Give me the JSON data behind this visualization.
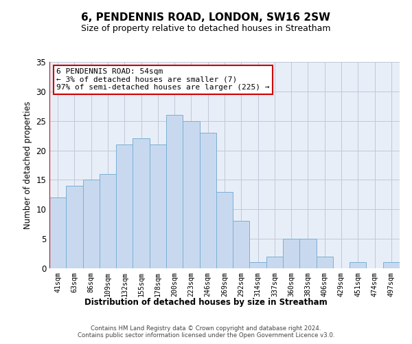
{
  "title": "6, PENDENNIS ROAD, LONDON, SW16 2SW",
  "subtitle": "Size of property relative to detached houses in Streatham",
  "xlabel": "Distribution of detached houses by size in Streatham",
  "ylabel": "Number of detached properties",
  "footer_line1": "Contains HM Land Registry data © Crown copyright and database right 2024.",
  "footer_line2": "Contains public sector information licensed under the Open Government Licence v3.0.",
  "bin_labels": [
    "41sqm",
    "63sqm",
    "86sqm",
    "109sqm",
    "132sqm",
    "155sqm",
    "178sqm",
    "200sqm",
    "223sqm",
    "246sqm",
    "269sqm",
    "292sqm",
    "314sqm",
    "337sqm",
    "360sqm",
    "383sqm",
    "406sqm",
    "429sqm",
    "451sqm",
    "474sqm",
    "497sqm"
  ],
  "bar_values": [
    12,
    14,
    15,
    16,
    21,
    22,
    21,
    26,
    25,
    23,
    13,
    8,
    1,
    2,
    5,
    5,
    2,
    0,
    1,
    0,
    1
  ],
  "bar_color": "#c8d9ef",
  "bar_edge_color": "#7aafd4",
  "annotation_box_text_line1": "6 PENDENNIS ROAD: 54sqm",
  "annotation_box_text_line2": "← 3% of detached houses are smaller (7)",
  "annotation_box_text_line3": "97% of semi-detached houses are larger (225) →",
  "ylim": [
    0,
    35
  ],
  "yticks": [
    0,
    5,
    10,
    15,
    20,
    25,
    30,
    35
  ],
  "background_color": "#ffffff",
  "plot_bg_color": "#e8eef7",
  "grid_color": "#c0c8d8",
  "annotation_box_facecolor": "#ffffff",
  "annotation_box_edgecolor": "#cc0000",
  "red_line_color": "#cc0000"
}
